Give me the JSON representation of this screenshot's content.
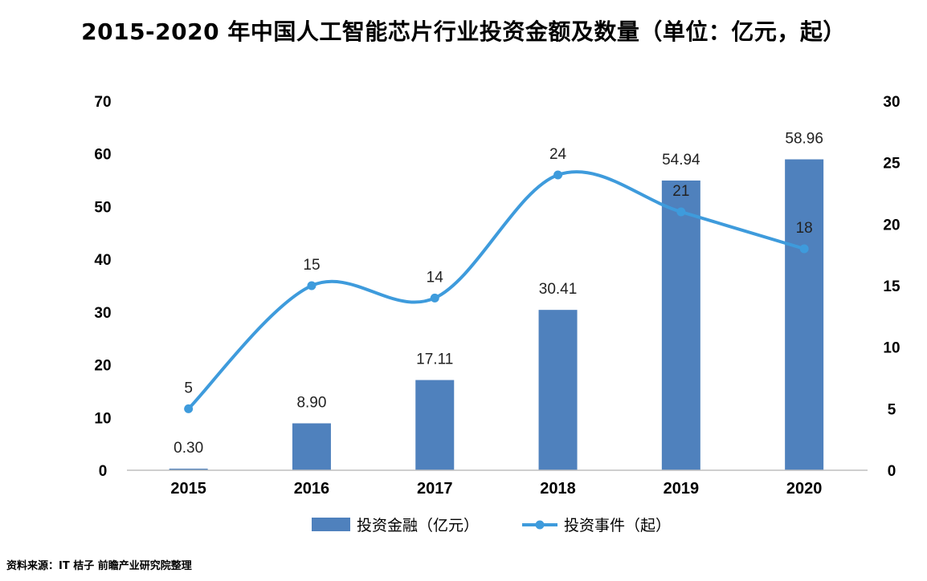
{
  "chart_data": {
    "type": "bar+line",
    "title": "2015-2020 年中国人工智能芯片行业投资金额及数量（单位：亿元，起）",
    "categories": [
      "2015",
      "2016",
      "2017",
      "2018",
      "2019",
      "2020"
    ],
    "series": [
      {
        "name": "投资金融（亿元）",
        "type": "bar",
        "axis": "left",
        "color": "#4f81bd",
        "values": [
          0.3,
          8.9,
          17.11,
          30.41,
          54.94,
          58.96
        ],
        "labels": [
          "0.30",
          "8.90",
          "17.11",
          "30.41",
          "54.94",
          "58.96"
        ]
      },
      {
        "name": "投资事件（起）",
        "type": "line",
        "axis": "right",
        "color": "#3e9bdc",
        "values": [
          5,
          15,
          14,
          24,
          21,
          18
        ],
        "labels": [
          "5",
          "15",
          "14",
          "24",
          "21",
          "18"
        ]
      }
    ],
    "y_left": {
      "min": 0,
      "max": 70,
      "ticks": [
        "0",
        "10",
        "20",
        "30",
        "40",
        "50",
        "60",
        "70"
      ]
    },
    "y_right": {
      "min": 0,
      "max": 30,
      "ticks": [
        "0",
        "5",
        "10",
        "15",
        "20",
        "25",
        "30"
      ]
    },
    "grid": false,
    "legend_position": "bottom-center"
  },
  "source_note": "资料来源：IT 桔子 前瞻产业研究院整理"
}
